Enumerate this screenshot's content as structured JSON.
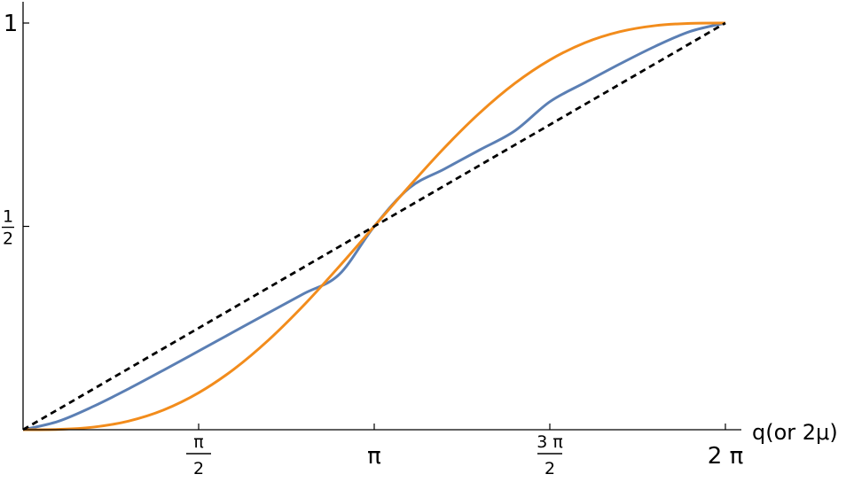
{
  "chart_data": {
    "type": "line",
    "title": "",
    "xlabel": "q(or 2μ)",
    "ylabel": "",
    "xlim": [
      0,
      6.2832
    ],
    "ylim": [
      0,
      1
    ],
    "grid": false,
    "legend": "none",
    "x_ticks": [
      {
        "value": 1.5708,
        "num": "π",
        "den": "2"
      },
      {
        "value": 3.1416,
        "label": "π"
      },
      {
        "value": 4.7124,
        "num": "3 π",
        "den": "2"
      },
      {
        "value": 6.2832,
        "label": "2 π"
      }
    ],
    "y_ticks": [
      {
        "value": 0.5,
        "num": "1",
        "den": "2"
      },
      {
        "value": 1,
        "label": "1"
      }
    ],
    "series": [
      {
        "color": "#5b7fb4",
        "style": "solid",
        "x": [
          0,
          0.3142,
          0.6283,
          0.9425,
          1.2566,
          1.5708,
          1.885,
          2.1991,
          2.5133,
          2.8274,
          3.1416,
          3.4558,
          3.7699,
          4.0841,
          4.3982,
          4.7124,
          5.0265,
          5.3407,
          5.6549,
          5.969,
          6.2832
        ],
        "y": [
          0,
          0.0206,
          0.0573,
          0.1004,
          0.1464,
          0.1935,
          0.2408,
          0.2879,
          0.3348,
          0.3816,
          0.5,
          0.5945,
          0.6412,
          0.6879,
          0.7347,
          0.8065,
          0.8536,
          0.8996,
          0.9427,
          0.9794,
          1
        ]
      },
      {
        "color": "#f28c1c",
        "style": "solid",
        "x": [
          0,
          0.3142,
          0.6283,
          0.9425,
          1.2566,
          1.5708,
          1.885,
          2.1991,
          2.5133,
          2.8274,
          3.1416,
          3.4558,
          3.7699,
          4.0841,
          4.3982,
          4.7124,
          5.0265,
          5.3407,
          5.6549,
          5.969,
          6.2832
        ],
        "y": [
          0,
          0.0008,
          0.0064,
          0.0212,
          0.0485,
          0.0908,
          0.1486,
          0.2213,
          0.3066,
          0.4012,
          0.5,
          0.5988,
          0.6934,
          0.7787,
          0.8514,
          0.9092,
          0.9515,
          0.9788,
          0.9936,
          0.9992,
          1
        ]
      },
      {
        "color": "#000000",
        "style": "dashed",
        "x": [
          0,
          6.2832
        ],
        "y": [
          0,
          1
        ]
      }
    ]
  }
}
